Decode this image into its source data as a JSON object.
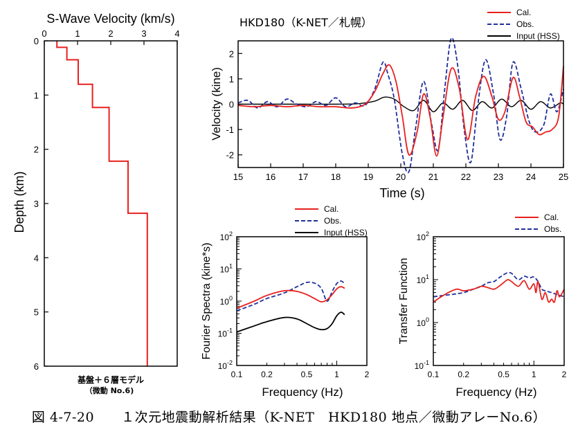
{
  "figure": {
    "caption": "図 4-7-20　　１次元地震動解析結果（K-NET　HKD180 地点／微動アレーNo.6）",
    "colors": {
      "cal": "#e8201e",
      "obs": "#1f2f9c",
      "input": "#000000"
    }
  },
  "chart_data": [
    {
      "id": "profile",
      "type": "line",
      "title": "S-Wave Velocity (km/s)",
      "ylabel": "Depth (km)",
      "xlim": [
        0,
        4
      ],
      "ylim": [
        0,
        6
      ],
      "y_inverted": true,
      "x_ticks": [
        "0",
        "1",
        "2",
        "3",
        "4"
      ],
      "y_ticks": [
        "0",
        "1",
        "2",
        "3",
        "4",
        "5",
        "6"
      ],
      "model_label_1": "基盤＋６層モデル",
      "model_label_2": "（微動 No.6)",
      "steps": [
        {
          "vs": 0.38,
          "top": 0.0,
          "bottom": 0.12
        },
        {
          "vs": 0.68,
          "top": 0.12,
          "bottom": 0.35
        },
        {
          "vs": 1.02,
          "top": 0.35,
          "bottom": 0.8
        },
        {
          "vs": 1.45,
          "top": 0.8,
          "bottom": 1.23
        },
        {
          "vs": 1.95,
          "top": 1.23,
          "bottom": 2.22
        },
        {
          "vs": 2.52,
          "top": 2.22,
          "bottom": 3.18
        },
        {
          "vs": 3.1,
          "top": 3.18,
          "bottom": 6.0
        }
      ]
    },
    {
      "id": "velocity",
      "type": "line",
      "title": "HKD180（K-NET／札幌）",
      "xlabel": "Time (s)",
      "ylabel": "Velocity (kine)",
      "xlim": [
        15,
        25
      ],
      "ylim": [
        -2.5,
        2.5
      ],
      "x_ticks": [
        "15",
        "16",
        "17",
        "18",
        "19",
        "20",
        "21",
        "22",
        "23",
        "24",
        "25"
      ],
      "y_ticks": [
        "2",
        "1",
        "0",
        "-1",
        "-2"
      ],
      "legend": [
        "Cal.",
        "Obs.",
        "Input (HSS)"
      ],
      "series": [
        {
          "name": "Cal.",
          "x": [
            15,
            15.5,
            16,
            16.5,
            17,
            17.5,
            18,
            18.5,
            18.9,
            19.2,
            19.45,
            19.65,
            19.85,
            20.05,
            20.25,
            20.5,
            20.7,
            20.9,
            21.1,
            21.3,
            21.55,
            21.8,
            22.05,
            22.3,
            22.55,
            22.8,
            23.0,
            23.2,
            23.45,
            23.65,
            23.85,
            24.05,
            24.25,
            24.45,
            24.65,
            24.85,
            25
          ],
          "values": [
            -0.05,
            -0.1,
            -0.05,
            -0.1,
            -0.05,
            -0.1,
            -0.1,
            -0.15,
            0.0,
            0.5,
            1.2,
            1.55,
            0.9,
            -0.5,
            -2.0,
            -1.1,
            0.4,
            -0.5,
            -2.05,
            -0.5,
            1.4,
            0.6,
            -1.4,
            0.3,
            1.1,
            0.3,
            -0.6,
            -0.3,
            1.05,
            0.3,
            -0.7,
            -0.9,
            -1.2,
            -1.1,
            -1.0,
            -0.5,
            1.5
          ]
        },
        {
          "name": "Obs.",
          "x": [
            15,
            15.3,
            15.6,
            15.9,
            16.2,
            16.5,
            16.8,
            17.1,
            17.4,
            17.7,
            18.0,
            18.3,
            18.6,
            18.9,
            19.2,
            19.45,
            19.6,
            19.8,
            20.05,
            20.25,
            20.45,
            20.7,
            20.95,
            21.15,
            21.35,
            21.55,
            21.75,
            21.95,
            22.15,
            22.35,
            22.6,
            22.85,
            23.05,
            23.25,
            23.45,
            23.7,
            23.95,
            24.15,
            24.4,
            24.6,
            24.8,
            25
          ],
          "values": [
            0.05,
            0.15,
            -0.15,
            0.1,
            -0.1,
            0.2,
            0.0,
            -0.1,
            0.1,
            -0.05,
            0.25,
            -0.1,
            0.05,
            -0.05,
            0.6,
            1.65,
            1.2,
            0.2,
            -2.0,
            -2.7,
            -1.0,
            0.9,
            -0.8,
            -1.8,
            0.6,
            2.6,
            1.5,
            -1.0,
            -2.3,
            -0.2,
            1.75,
            0.4,
            -1.4,
            -0.5,
            1.65,
            0.6,
            -0.7,
            -1.1,
            -0.8,
            0.4,
            -0.3,
            0.6
          ]
        },
        {
          "name": "Input (HSS)",
          "x": [
            15,
            16,
            17,
            18,
            18.7,
            19.2,
            19.5,
            19.8,
            20.1,
            20.4,
            20.7,
            21.0,
            21.3,
            21.6,
            21.9,
            22.2,
            22.5,
            22.8,
            23.1,
            23.4,
            23.7,
            24.0,
            24.3,
            24.6,
            24.9,
            25
          ],
          "values": [
            0.0,
            0.0,
            0.0,
            0.0,
            0.02,
            0.12,
            0.28,
            0.2,
            -0.1,
            -0.25,
            0.15,
            -0.3,
            0.05,
            -0.2,
            0.15,
            -0.25,
            0.1,
            -0.15,
            0.2,
            -0.1,
            0.15,
            -0.2,
            0.1,
            -0.15,
            0.05,
            0.0
          ]
        }
      ]
    },
    {
      "id": "fourier",
      "type": "line",
      "xlabel": "Frequency (Hz)",
      "ylabel": "Fourier Spectra (kine*s)",
      "x_scale": "log",
      "y_scale": "log",
      "xlim": [
        0.1,
        2
      ],
      "ylim": [
        0.01,
        100
      ],
      "x_ticks": [
        "0.1",
        "0.2",
        "0.5",
        "1",
        "2"
      ],
      "y_ticks": [
        "10^2",
        "10^1",
        "10^0",
        "10^-1",
        "10^-2"
      ],
      "legend": [
        "Cal.",
        "Obs.",
        "Input (HSS)"
      ],
      "series": [
        {
          "name": "Cal.",
          "x": [
            0.1,
            0.15,
            0.2,
            0.3,
            0.4,
            0.5,
            0.6,
            0.7,
            0.8,
            0.9,
            1.0,
            1.1,
            1.2
          ],
          "values": [
            0.6,
            1.0,
            1.5,
            2.1,
            2.0,
            1.6,
            1.2,
            0.95,
            1.1,
            1.6,
            2.4,
            2.8,
            2.5
          ]
        },
        {
          "name": "Obs.",
          "x": [
            0.1,
            0.15,
            0.2,
            0.3,
            0.4,
            0.5,
            0.6,
            0.7,
            0.8,
            0.9,
            1.0,
            1.1,
            1.2
          ],
          "values": [
            0.5,
            0.8,
            1.2,
            1.8,
            2.8,
            3.8,
            3.6,
            2.5,
            1.0,
            2.0,
            3.5,
            4.2,
            3.5
          ]
        },
        {
          "name": "Input (HSS)",
          "x": [
            0.1,
            0.15,
            0.2,
            0.3,
            0.4,
            0.5,
            0.6,
            0.7,
            0.8,
            0.9,
            1.0,
            1.1,
            1.2
          ],
          "values": [
            0.11,
            0.17,
            0.23,
            0.31,
            0.28,
            0.2,
            0.15,
            0.13,
            0.14,
            0.2,
            0.35,
            0.45,
            0.38
          ]
        }
      ]
    },
    {
      "id": "transfer",
      "type": "line",
      "xlabel": "Frequency (Hz)",
      "ylabel": "Transfer Function",
      "x_scale": "log",
      "y_scale": "log",
      "xlim": [
        0.1,
        2
      ],
      "ylim": [
        0.1,
        100
      ],
      "x_ticks": [
        "0.1",
        "0.2",
        "0.5",
        "1",
        "2"
      ],
      "y_ticks": [
        "10^2",
        "10^1",
        "10^0",
        "10^-1"
      ],
      "legend": [
        "Cal.",
        "Obs."
      ],
      "series": [
        {
          "name": "Cal.",
          "x": [
            0.1,
            0.13,
            0.17,
            0.2,
            0.25,
            0.3,
            0.35,
            0.4,
            0.45,
            0.5,
            0.55,
            0.6,
            0.7,
            0.8,
            0.9,
            1.0,
            1.05,
            1.1,
            1.2,
            1.3,
            1.4,
            1.5,
            1.6,
            1.7,
            1.8,
            2.0
          ],
          "values": [
            3.0,
            4.5,
            6.0,
            5.5,
            6.0,
            7.0,
            6.5,
            6.0,
            7.0,
            8.5,
            10.0,
            9.0,
            7.0,
            9.5,
            6.0,
            8.0,
            5.0,
            9.0,
            3.5,
            5.0,
            3.0,
            3.5,
            3.0,
            5.5,
            4.0,
            6.0
          ]
        },
        {
          "name": "Obs.",
          "x": [
            0.1,
            0.15,
            0.2,
            0.25,
            0.3,
            0.35,
            0.4,
            0.45,
            0.5,
            0.55,
            0.6,
            0.7,
            0.8,
            0.9,
            1.0,
            1.1,
            1.2,
            1.3,
            1.5,
            1.7,
            2.0
          ],
          "values": [
            4.0,
            4.5,
            5.0,
            6.0,
            7.0,
            8.5,
            9.0,
            11.0,
            13.0,
            14.5,
            14.0,
            10.0,
            12.0,
            11.0,
            11.5,
            9.0,
            6.0,
            5.5,
            5.0,
            4.5,
            4.0
          ]
        }
      ]
    }
  ]
}
